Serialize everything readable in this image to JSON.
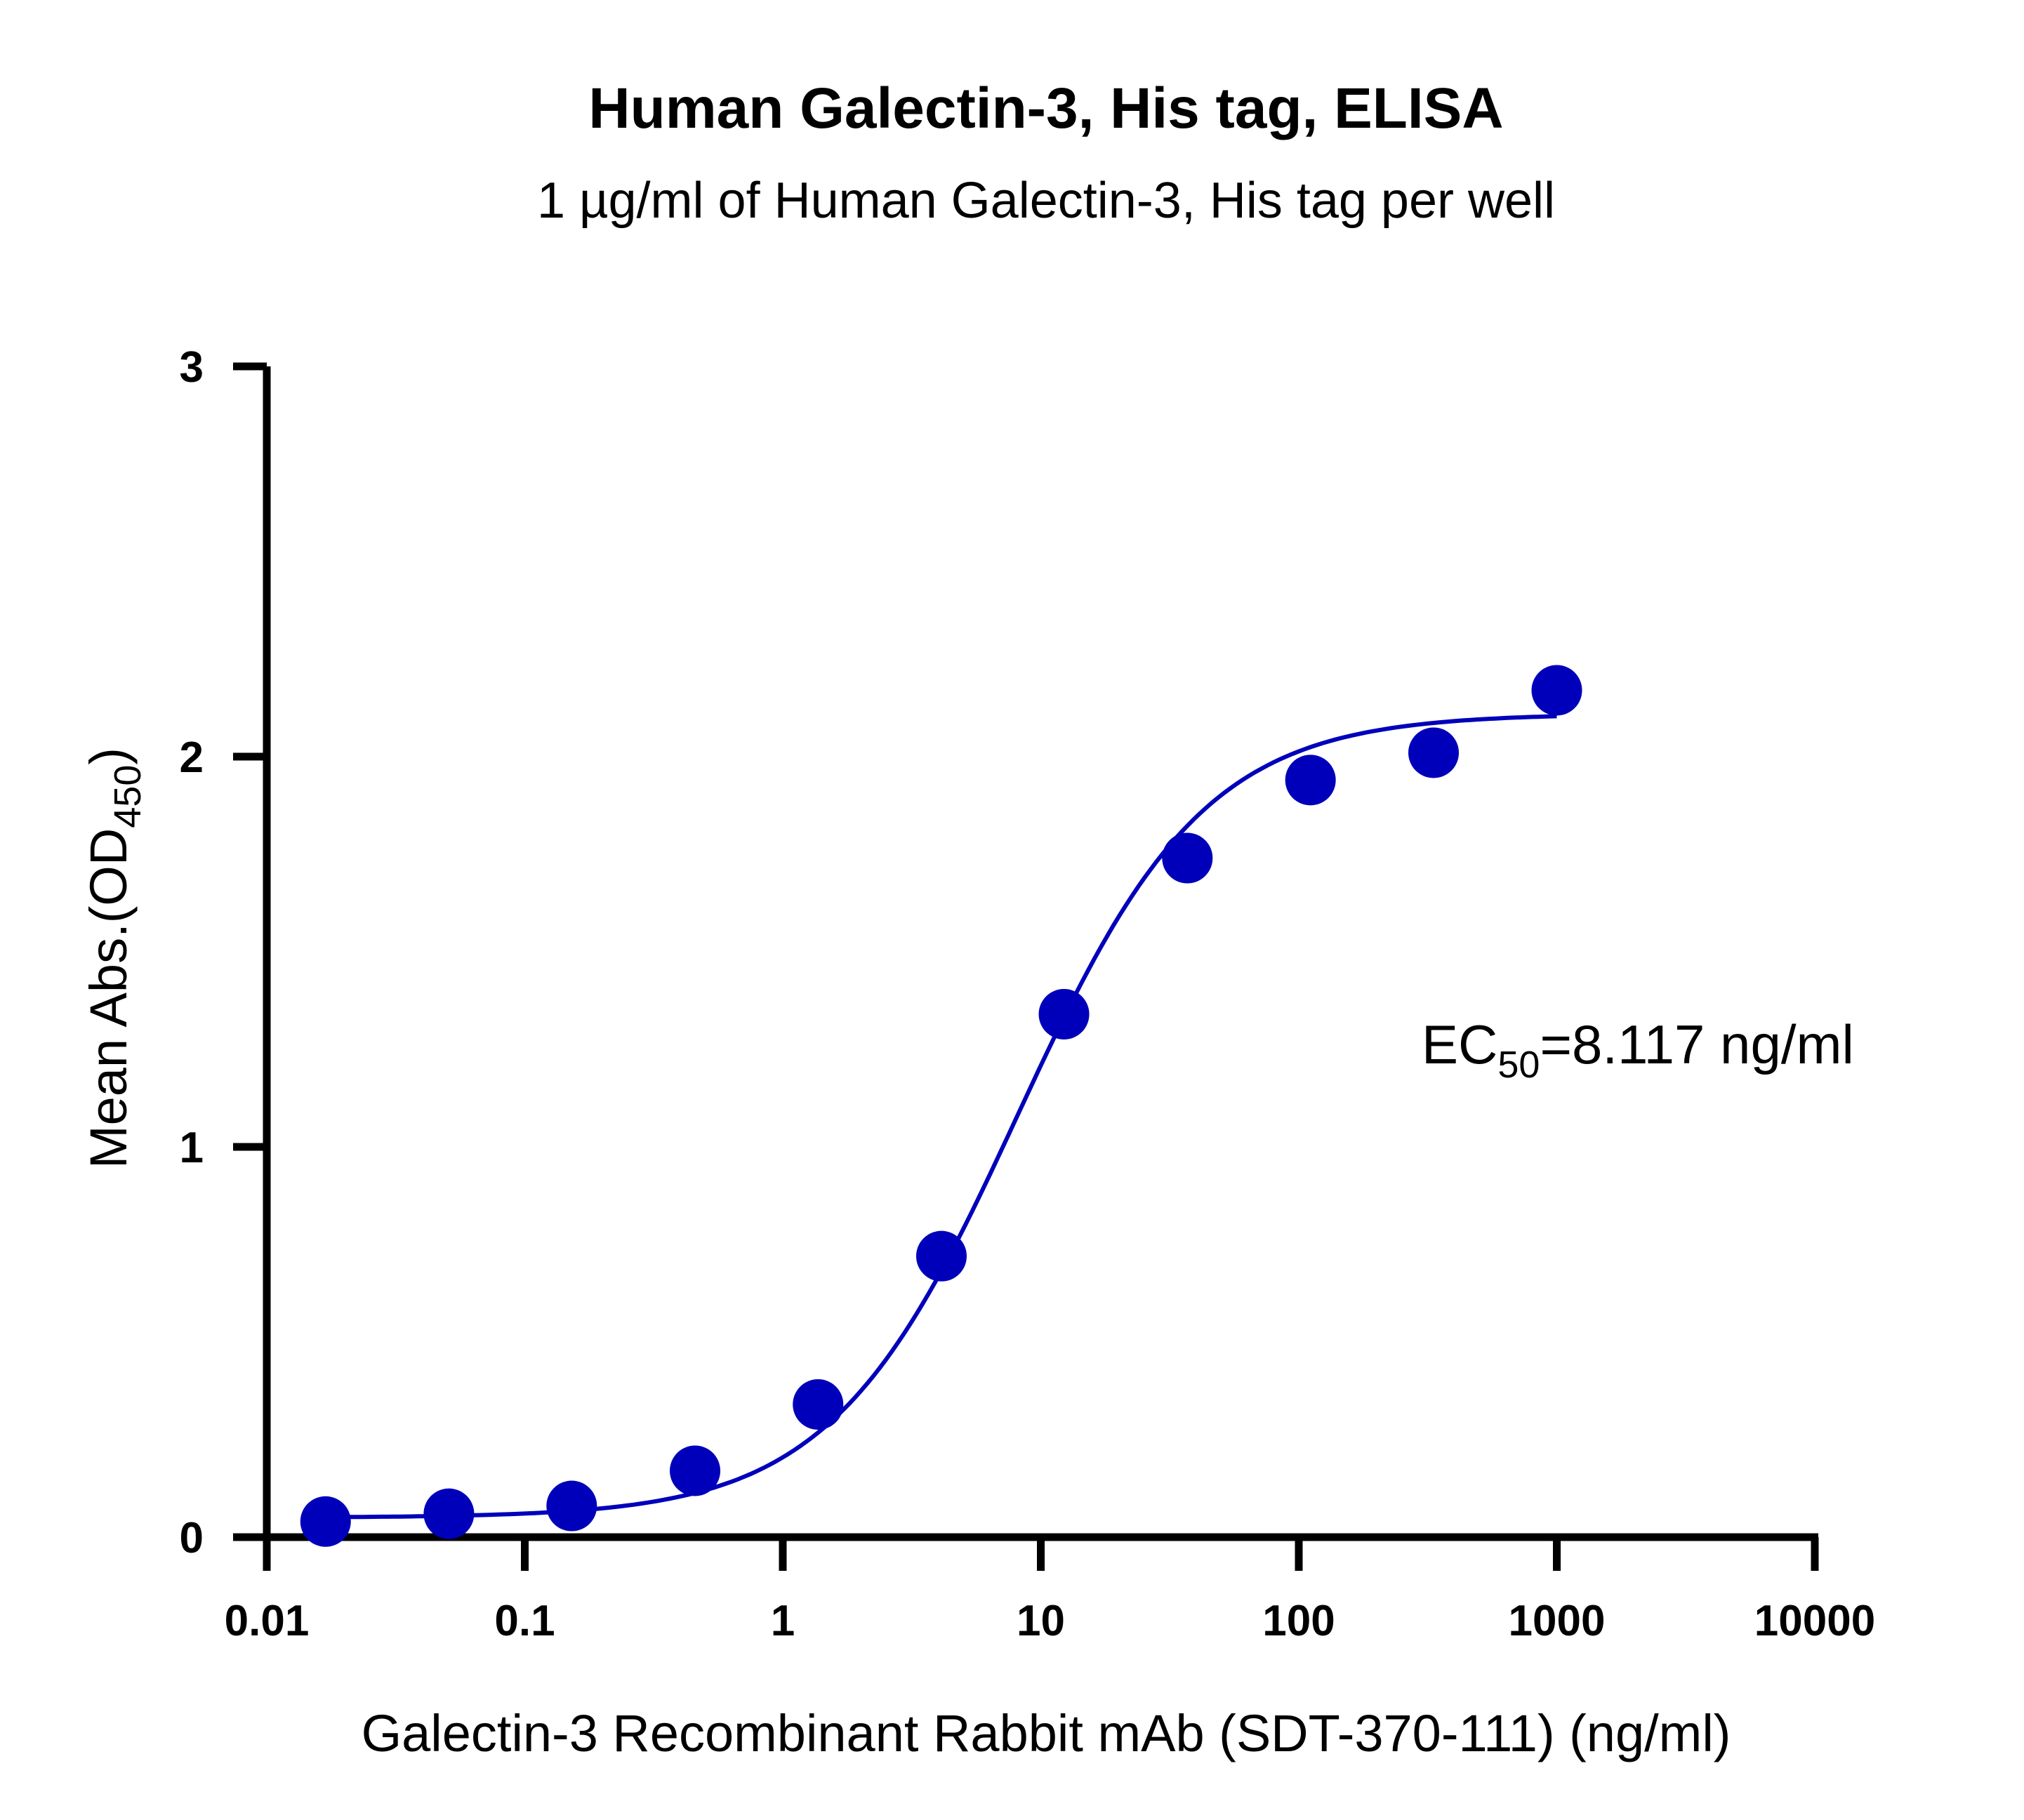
{
  "chart_data": {
    "type": "scatter",
    "title": "Human Galectin-3, His tag, ELISA",
    "subtitle": "1 µg/ml of Human Galectin-3, His tag per well",
    "xlabel": "Galectin-3 Recombinant Rabbit mAb (SDT-370-111) (ng/ml)",
    "ylabel": {
      "main": "Mean Abs.(OD",
      "sub": "450",
      "end": ")"
    },
    "x_scale": "log",
    "xlim": [
      0.01,
      10000
    ],
    "ylim": [
      0,
      3
    ],
    "x_ticks": [
      0.01,
      0.1,
      1,
      10,
      100,
      1000,
      10000
    ],
    "x_tick_labels": [
      "0.01",
      "0.1",
      "1",
      "10",
      "100",
      "1000",
      "10000"
    ],
    "y_ticks": [
      0,
      1,
      2,
      3
    ],
    "y_tick_labels": [
      "0",
      "1",
      "2",
      "3"
    ],
    "grid": false,
    "color": "#0000BB",
    "points": {
      "x": [
        0.0169,
        0.0508,
        0.152,
        0.457,
        1.37,
        4.12,
        12.3,
        37.0,
        111,
        333,
        1000
      ],
      "y": [
        0.04,
        0.06,
        0.08,
        0.17,
        0.34,
        0.72,
        1.34,
        1.74,
        1.94,
        2.01,
        2.17
      ]
    },
    "fit_curve": {
      "model": "4PL",
      "bottom": 0.05,
      "top": 2.11,
      "ec50": 8.117,
      "hill": 1.2,
      "x_range": [
        0.0169,
        1000
      ]
    },
    "annotation": {
      "prefix": "EC",
      "sub": "50",
      "suffix": "=8.117 ng/ml"
    }
  }
}
